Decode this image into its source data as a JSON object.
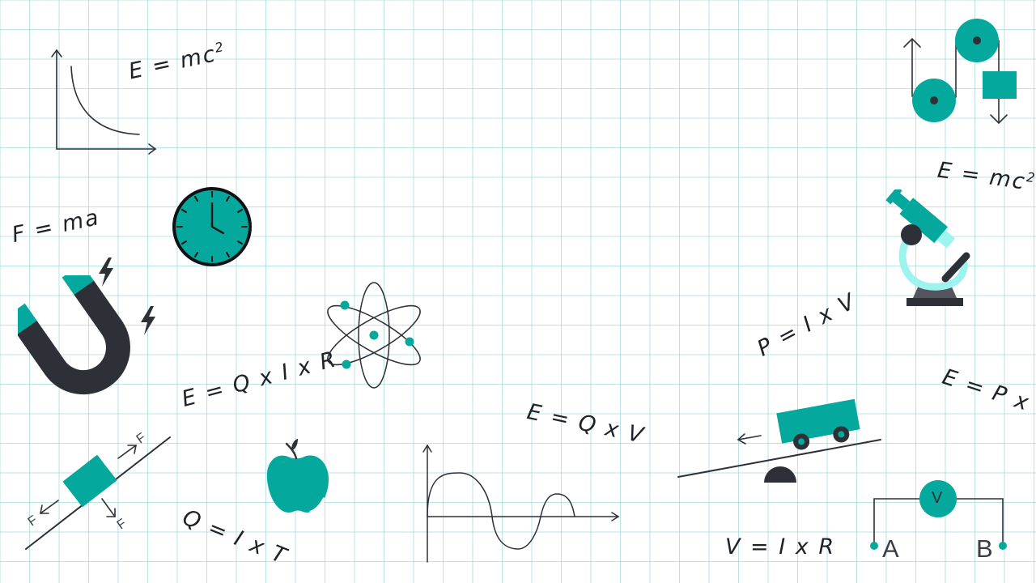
{
  "colors": {
    "accent": "#05a89c",
    "dark": "#2e3038",
    "light_accent": "#9df4ef",
    "grid": "#85cdcd"
  },
  "formulas": {
    "emc2_top": {
      "base": "E = mc",
      "sup": "2"
    },
    "emc2_right": {
      "base": "E = mc",
      "sup": "2"
    },
    "fma": "F = ma",
    "eqir": "E = Q x I x R",
    "pixv": "P = I x V",
    "epxt": "E = P x t",
    "eqxv": "E = Q x V",
    "qixt": "Q = I x T",
    "vixr": "V = I x R"
  },
  "force_labels": {
    "f_right": "F",
    "f_left": "F",
    "f_down": "F"
  },
  "magnet": {
    "minus": "−",
    "plus": "+"
  },
  "circuit": {
    "meter": "V",
    "label_a": "A",
    "label_b": "B"
  },
  "icons": [
    "graph-curve-icon",
    "clock-icon",
    "magnet-icon",
    "lightning-icon",
    "atom-icon",
    "apple-icon",
    "inclined-plane-icon",
    "wave-graph-icon",
    "seesaw-cart-icon",
    "pulley-icon",
    "microscope-icon",
    "voltmeter-circuit-icon"
  ]
}
